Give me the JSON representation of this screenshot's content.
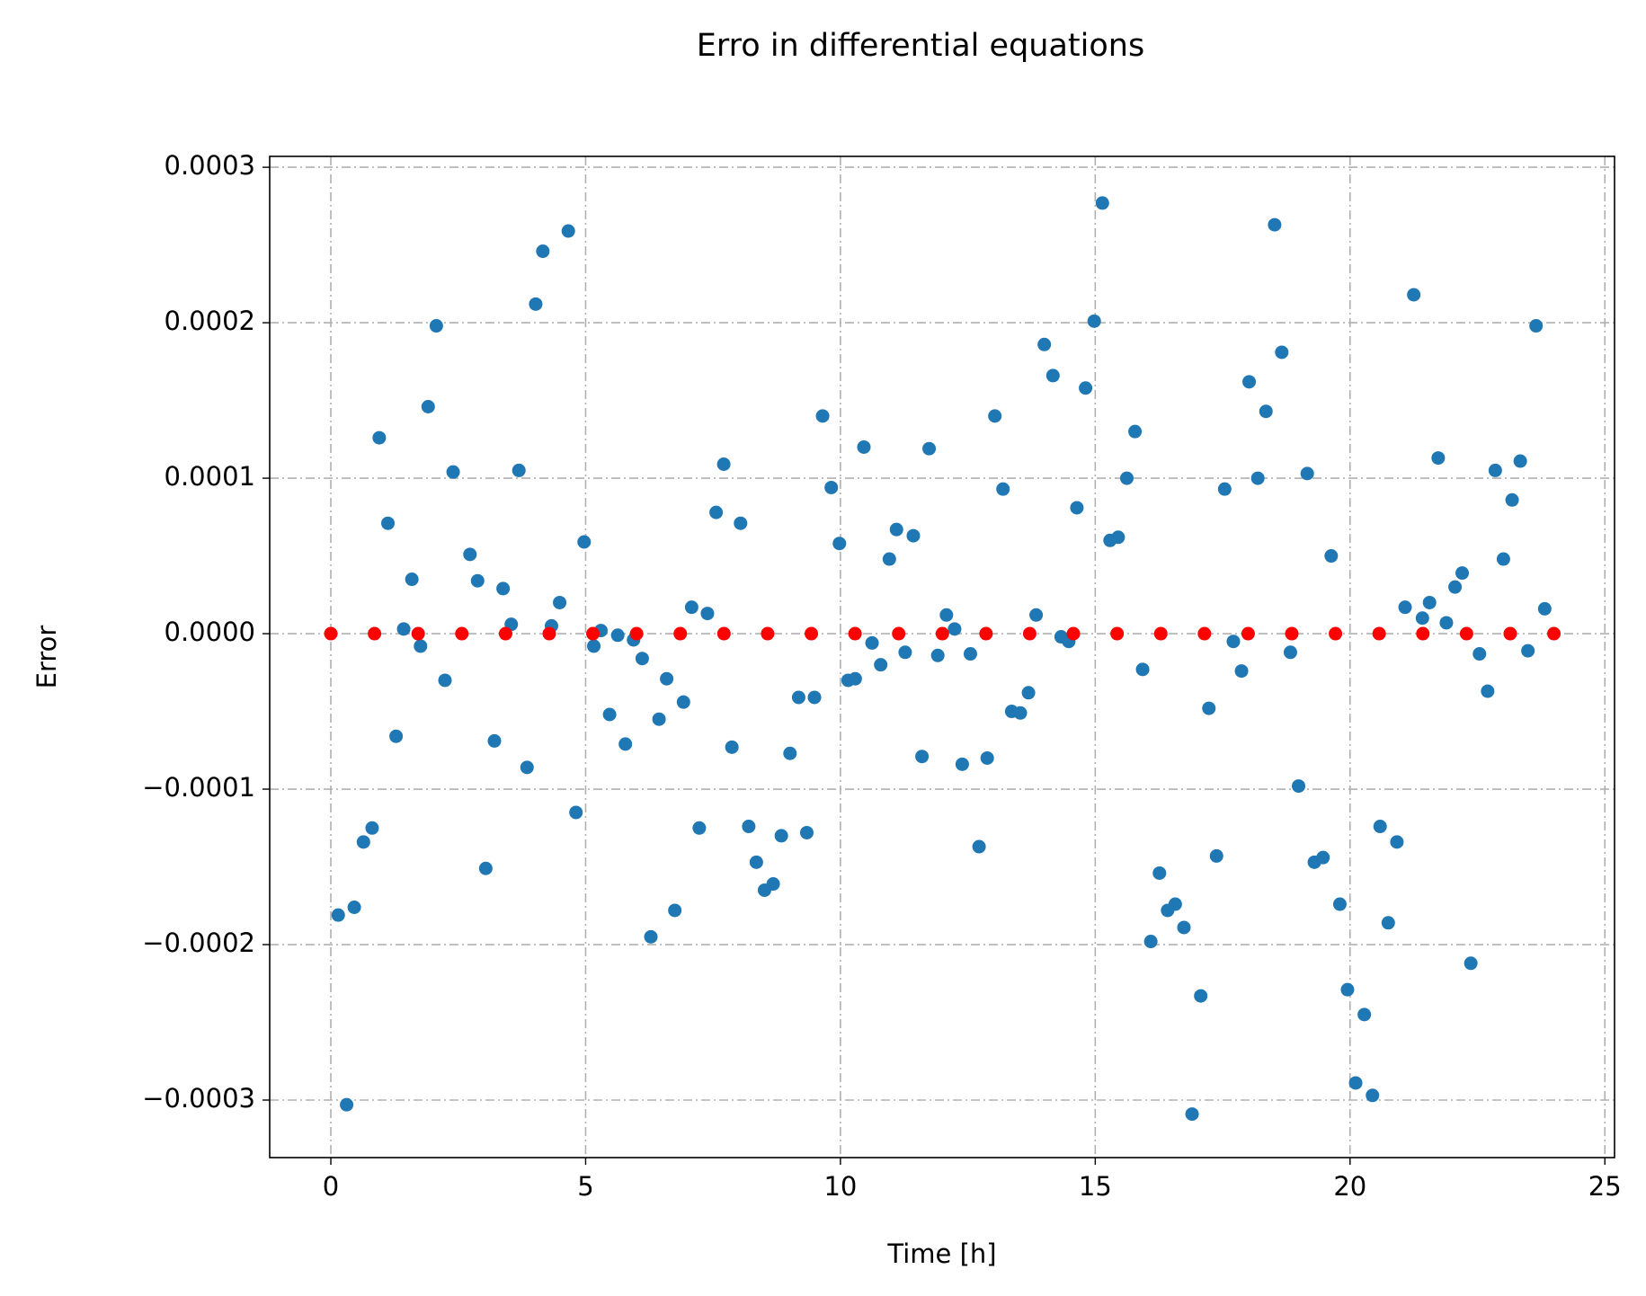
{
  "chart_data": {
    "type": "scatter",
    "title": "Erro in differential equations",
    "x_label": "Time [h]",
    "y_label": "Error",
    "xlim": [
      -1.2,
      25.19
    ],
    "ylim": [
      -0.000337,
      0.000307
    ],
    "xticks": [
      0,
      5,
      10,
      15,
      20,
      25
    ],
    "yticks": [
      {
        "value": -0.0003,
        "label": "−0.0003"
      },
      {
        "value": -0.0002,
        "label": "−0.0002"
      },
      {
        "value": -0.0001,
        "label": "−0.0001"
      },
      {
        "value": 0,
        "label": "0.0000"
      },
      {
        "value": 0.0001,
        "label": "0.0001"
      },
      {
        "value": 0.0002,
        "label": "0.0002"
      },
      {
        "value": 0.0003,
        "label": "0.0003"
      }
    ],
    "grid": true,
    "series": [
      {
        "color": "#1f77b4",
        "x": [
          0.145,
          0.31,
          0.46,
          0.64,
          0.81,
          0.95,
          1.12,
          1.28,
          1.43,
          1.59,
          1.76,
          1.91,
          2.07,
          2.24,
          2.4,
          2.73,
          2.88,
          3.04,
          3.21,
          3.38,
          3.54,
          3.69,
          3.85,
          4.02,
          4.16,
          4.33,
          4.49,
          4.66,
          4.81,
          4.97,
          5.16,
          5.3,
          5.47,
          5.63,
          5.78,
          5.94,
          6.11,
          6.28,
          6.44,
          6.59,
          6.75,
          6.92,
          7.08,
          7.23,
          7.39,
          7.56,
          7.71,
          7.87,
          8.04,
          8.2,
          8.35,
          8.51,
          8.68,
          8.84,
          9.01,
          9.18,
          9.34,
          9.49,
          9.65,
          9.82,
          9.98,
          10.15,
          10.29,
          10.46,
          10.62,
          10.79,
          10.96,
          11.1,
          11.27,
          11.43,
          11.6,
          11.74,
          11.91,
          12.08,
          12.24,
          12.39,
          12.55,
          12.72,
          12.88,
          13.03,
          13.19,
          13.36,
          13.53,
          13.69,
          13.84,
          14.0,
          14.17,
          14.33,
          14.48,
          14.64,
          14.81,
          14.98,
          15.14,
          15.29,
          15.45,
          15.62,
          15.78,
          15.93,
          16.09,
          16.26,
          16.42,
          16.57,
          16.74,
          16.9,
          17.07,
          17.23,
          17.38,
          17.54,
          17.71,
          17.87,
          18.02,
          18.19,
          18.35,
          18.52,
          18.66,
          18.83,
          18.99,
          19.16,
          19.3,
          19.47,
          19.63,
          19.8,
          19.95,
          20.11,
          20.28,
          20.44,
          20.59,
          20.75,
          20.92,
          21.08,
          21.25,
          21.42,
          21.56,
          21.73,
          21.89,
          22.06,
          22.2,
          22.37,
          22.54,
          22.7,
          22.85,
          23.01,
          23.18,
          23.34,
          23.49,
          23.65,
          23.82
        ],
        "values": [
          -0.000181,
          -0.000303,
          -0.000176,
          -0.000134,
          -0.000125,
          0.000126,
          7.1e-05,
          -6.6e-05,
          3e-06,
          3.5e-05,
          -8e-06,
          0.000146,
          0.000198,
          -3e-05,
          0.000104,
          5.1e-05,
          3.4e-05,
          -0.000151,
          -6.9e-05,
          2.9e-05,
          6e-06,
          0.000105,
          -8.6e-05,
          0.000212,
          0.000246,
          5e-06,
          2e-05,
          0.000259,
          -0.000115,
          5.9e-05,
          -8e-06,
          2e-06,
          -5.2e-05,
          -1e-06,
          -7.1e-05,
          -4e-06,
          -1.6e-05,
          -0.000195,
          -5.5e-05,
          -2.9e-05,
          -0.000178,
          -4.4e-05,
          1.7e-05,
          -0.000125,
          1.3e-05,
          7.8e-05,
          0.000109,
          -7.3e-05,
          7.1e-05,
          -0.000124,
          -0.000147,
          -0.000165,
          -0.000161,
          -0.00013,
          -7.7e-05,
          -4.1e-05,
          -0.000128,
          -4.1e-05,
          0.00014,
          9.4e-05,
          5.8e-05,
          -3e-05,
          -2.9e-05,
          0.00012,
          -6e-06,
          -2e-05,
          4.8e-05,
          6.7e-05,
          -1.2e-05,
          6.3e-05,
          -7.9e-05,
          0.000119,
          -1.4e-05,
          1.2e-05,
          3e-06,
          -8.4e-05,
          -1.3e-05,
          -0.000137,
          -8e-05,
          0.00014,
          9.3e-05,
          -5e-05,
          -5.1e-05,
          -3.8e-05,
          1.2e-05,
          0.000186,
          0.000166,
          -2e-06,
          -5e-06,
          8.1e-05,
          0.000158,
          0.000201,
          0.000277,
          6e-05,
          6.2e-05,
          0.0001,
          0.00013,
          -2.3e-05,
          -0.000198,
          -0.000154,
          -0.000178,
          -0.000174,
          -0.000189,
          -0.000309,
          -0.000233,
          -4.8e-05,
          -0.000143,
          9.3e-05,
          -5e-06,
          -2.4e-05,
          0.000162,
          0.0001,
          0.000143,
          0.000263,
          0.000181,
          -1.2e-05,
          -9.8e-05,
          0.000103,
          -0.000147,
          -0.000144,
          5e-05,
          -0.000174,
          -0.000229,
          -0.000289,
          -0.000245,
          -0.000297,
          -0.000124,
          -0.000186,
          -0.000134,
          1.7e-05,
          0.000218,
          1e-05,
          2e-05,
          0.000113,
          7e-06,
          3e-05,
          3.9e-05,
          -0.000212,
          -1.3e-05,
          -3.7e-05,
          0.000105,
          4.8e-05,
          8.6e-05,
          0.000111,
          -1.1e-05,
          0.000198,
          1.6e-05
        ]
      },
      {
        "color": "#ff0000",
        "x": [
          0,
          0.857,
          1.714,
          2.571,
          3.429,
          4.286,
          5.143,
          6,
          6.857,
          7.714,
          8.571,
          9.429,
          10.286,
          11.143,
          12,
          12.857,
          13.714,
          14.571,
          15.429,
          16.286,
          17.143,
          18,
          18.857,
          19.714,
          20.571,
          21.429,
          22.286,
          23.143,
          24
        ],
        "values": [
          0,
          0,
          0,
          0,
          0,
          0,
          0,
          0,
          0,
          0,
          0,
          0,
          0,
          0,
          0,
          0,
          0,
          0,
          0,
          0,
          0,
          0,
          0,
          0,
          0,
          0,
          0,
          0,
          0
        ]
      }
    ]
  }
}
